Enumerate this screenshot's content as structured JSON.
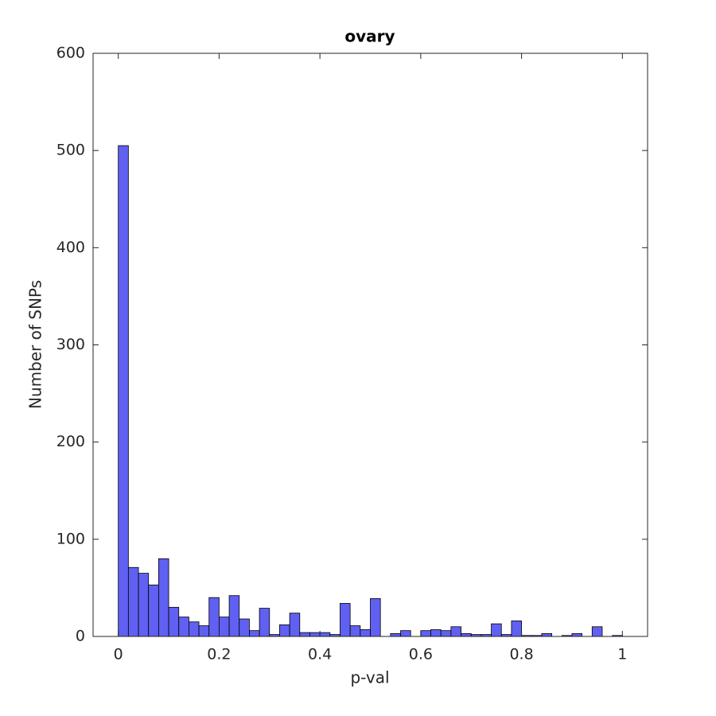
{
  "chart_data": {
    "type": "histogram",
    "title": "ovary",
    "xlabel": "p-val",
    "ylabel": "Number of SNPs",
    "bins": [
      0,
      0.02,
      0.04,
      0.06,
      0.08,
      0.1,
      0.12,
      0.14,
      0.16,
      0.18,
      0.2,
      0.22,
      0.24,
      0.26,
      0.28,
      0.3,
      0.32,
      0.34,
      0.36,
      0.38,
      0.4,
      0.42,
      0.44,
      0.46,
      0.48,
      0.5,
      0.52,
      0.54,
      0.56,
      0.58,
      0.6,
      0.62,
      0.64,
      0.66,
      0.68,
      0.7,
      0.72,
      0.74,
      0.76,
      0.78,
      0.8,
      0.82,
      0.84,
      0.86,
      0.88,
      0.9,
      0.92,
      0.94,
      0.96,
      0.98,
      1
    ],
    "values": [
      505,
      71,
      65,
      53,
      80,
      30,
      20,
      15,
      11,
      40,
      20,
      42,
      18,
      6,
      29,
      2,
      12,
      24,
      4,
      4,
      4,
      2,
      34,
      11,
      7,
      39,
      0,
      3,
      6,
      0,
      6,
      7,
      6,
      10,
      3,
      2,
      2,
      13,
      2,
      16,
      1,
      1,
      3,
      0,
      1,
      3,
      0,
      10,
      0,
      1
    ],
    "color": "#6060f2",
    "xlim": [
      -0.05,
      1.05
    ],
    "ylim": [
      0,
      600
    ],
    "xticks": [
      0,
      0.2,
      0.4,
      0.6,
      0.8,
      1
    ],
    "yticks": [
      0,
      100,
      200,
      300,
      400,
      500,
      600
    ]
  }
}
